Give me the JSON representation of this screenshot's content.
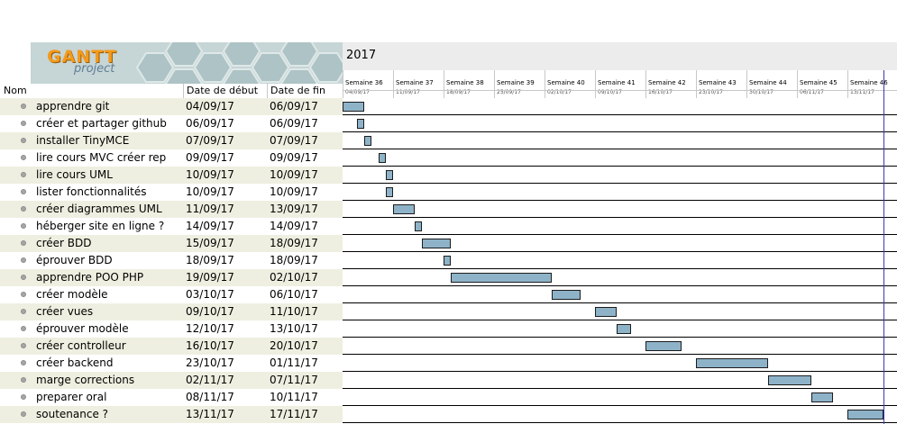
{
  "logo": {
    "text_gantt": "GANTT",
    "text_project": "project"
  },
  "timeline": {
    "year": "2017",
    "weeks": [
      {
        "name": "Semaine 36",
        "date": "04/09/17"
      },
      {
        "name": "Semaine 37",
        "date": "11/09/17"
      },
      {
        "name": "Semaine 38",
        "date": "18/09/17"
      },
      {
        "name": "Semaine 39",
        "date": "25/09/17"
      },
      {
        "name": "Semaine 40",
        "date": "02/10/17"
      },
      {
        "name": "Semaine 41",
        "date": "09/10/17"
      },
      {
        "name": "Semaine 42",
        "date": "16/10/17"
      },
      {
        "name": "Semaine 43",
        "date": "23/10/17"
      },
      {
        "name": "Semaine 44",
        "date": "30/10/17"
      },
      {
        "name": "Semaine 45",
        "date": "06/11/17"
      },
      {
        "name": "Semaine 46",
        "date": "13/11/17"
      }
    ]
  },
  "columns": {
    "name": "Nom",
    "start": "Date de début",
    "end": "Date de fin"
  },
  "tasks": [
    {
      "name": "apprendre git",
      "start": "04/09/17",
      "end": "06/09/17"
    },
    {
      "name": "créer et partager github",
      "start": "06/09/17",
      "end": "06/09/17"
    },
    {
      "name": "installer TinyMCE",
      "start": "07/09/17",
      "end": "07/09/17"
    },
    {
      "name": "lire cours MVC créer rep",
      "start": "09/09/17",
      "end": "09/09/17"
    },
    {
      "name": "lire cours UML",
      "start": "10/09/17",
      "end": "10/09/17"
    },
    {
      "name": "lister fonctionnalités",
      "start": "10/09/17",
      "end": "10/09/17"
    },
    {
      "name": "créer diagrammes UML",
      "start": "11/09/17",
      "end": "13/09/17"
    },
    {
      "name": "héberger site en ligne ?",
      "start": "14/09/17",
      "end": "14/09/17"
    },
    {
      "name": "créer BDD",
      "start": "15/09/17",
      "end": "18/09/17"
    },
    {
      "name": "éprouver BDD",
      "start": "18/09/17",
      "end": "18/09/17"
    },
    {
      "name": "apprendre POO PHP",
      "start": "19/09/17",
      "end": "02/10/17"
    },
    {
      "name": "créer modèle",
      "start": "03/10/17",
      "end": "06/10/17"
    },
    {
      "name": "créer vues",
      "start": "09/10/17",
      "end": "11/10/17"
    },
    {
      "name": "éprouver modèle",
      "start": "12/10/17",
      "end": "13/10/17"
    },
    {
      "name": "créer controlleur",
      "start": "16/10/17",
      "end": "20/10/17"
    },
    {
      "name": "créer backend",
      "start": "23/10/17",
      "end": "01/11/17"
    },
    {
      "name": "marge corrections",
      "start": "02/11/17",
      "end": "07/11/17"
    },
    {
      "name": "preparer oral",
      "start": "08/11/17",
      "end": "10/11/17"
    },
    {
      "name": "soutenance ?",
      "start": "13/11/17",
      "end": "17/11/17"
    }
  ],
  "colors": {
    "bar": "#8eb3c9",
    "row_alt": "#efefe1",
    "today_line": "#3b3bb5",
    "logo_bg": "#c6d5d6"
  }
}
